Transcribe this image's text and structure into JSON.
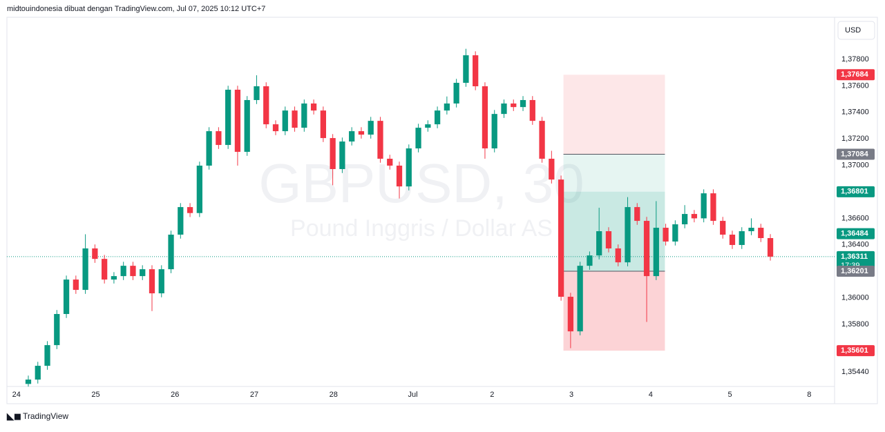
{
  "header": {
    "text": "midtouindonesia dibuat dengan TradingView.com, Jul 07, 2025 10:12 UTC+7"
  },
  "currency_button": "USD",
  "footer": {
    "brand": "TradingView"
  },
  "chart_data": {
    "type": "candlestick",
    "title": "GBPUSD, 30",
    "subtitle": "Pound Inggris / Dollar AS",
    "up_color": "#089981",
    "down_color": "#f23645",
    "x": [
      0.15,
      0.27,
      0.39,
      0.51,
      0.63,
      0.75,
      0.87,
      0.99,
      1.11,
      1.23,
      1.35,
      1.47,
      1.59,
      1.71,
      1.83,
      1.95,
      2.07,
      2.19,
      2.31,
      2.43,
      2.55,
      2.67,
      2.79,
      2.91,
      3.03,
      3.15,
      3.27,
      3.39,
      3.51,
      3.63,
      3.75,
      3.87,
      3.99,
      4.11,
      4.23,
      4.35,
      4.47,
      4.59,
      4.71,
      4.83,
      4.95,
      5.07,
      5.19,
      5.31,
      5.43,
      5.55,
      5.67,
      5.79,
      5.91,
      6.03,
      6.15,
      6.27,
      6.39,
      6.51,
      6.63,
      6.75,
      6.87,
      6.99,
      7.11,
      7.23,
      7.35,
      7.47,
      7.59,
      7.71,
      7.83,
      7.95,
      8.07,
      8.19,
      8.31,
      8.43,
      8.55,
      8.67,
      8.79,
      8.91,
      9.03,
      9.15,
      9.27,
      9.39,
      9.51
    ],
    "open": [
      1.3535,
      1.35383,
      1.35487,
      1.35643,
      1.35878,
      1.36138,
      1.3606,
      1.36373,
      1.36294,
      1.36138,
      1.36164,
      1.36242,
      1.36164,
      1.36216,
      1.36034,
      1.36216,
      1.36477,
      1.36685,
      1.3664,
      1.36998,
      1.37258,
      1.37154,
      1.37571,
      1.37102,
      1.37493,
      1.37597,
      1.3731,
      1.37258,
      1.37414,
      1.37284,
      1.37467,
      1.37414,
      1.37206,
      1.36972,
      1.3718,
      1.37258,
      1.37232,
      1.37336,
      1.3705,
      1.36998,
      1.36841,
      1.37128,
      1.37284,
      1.3731,
      1.37414,
      1.37467,
      1.37623,
      1.37831,
      1.37597,
      1.37128,
      1.37388,
      1.37467,
      1.3744,
      1.37493,
      1.37336,
      1.3705,
      1.36893,
      1.36008,
      1.35747,
      1.36242,
      1.3632,
      1.36503,
      1.36373,
      1.36268,
      1.36685,
      1.36581,
      1.36164,
      1.36529,
      1.36425,
      1.36555,
      1.36633,
      1.366,
      1.36789,
      1.36581,
      1.36477,
      1.36399,
      1.36503,
      1.36529,
      1.36451
    ],
    "high": [
      1.35413,
      1.35517,
      1.35673,
      1.35908,
      1.36168,
      1.36168,
      1.3648,
      1.36403,
      1.36324,
      1.36194,
      1.36272,
      1.36272,
      1.36246,
      1.36246,
      1.36246,
      1.36507,
      1.36715,
      1.36715,
      1.37028,
      1.37288,
      1.37288,
      1.37601,
      1.37601,
      1.37523,
      1.3768,
      1.37627,
      1.3734,
      1.37444,
      1.37444,
      1.37497,
      1.37497,
      1.37444,
      1.37236,
      1.3721,
      1.37288,
      1.37288,
      1.37366,
      1.37366,
      1.3708,
      1.37028,
      1.37158,
      1.37314,
      1.3734,
      1.37444,
      1.3752,
      1.37653,
      1.3788,
      1.37861,
      1.37627,
      1.37418,
      1.37497,
      1.37497,
      1.37523,
      1.37523,
      1.37366,
      1.3711,
      1.36923,
      1.36038,
      1.36272,
      1.3635,
      1.3668,
      1.36533,
      1.36403,
      1.3676,
      1.36715,
      1.36611,
      1.3673,
      1.36559,
      1.36585,
      1.367,
      1.36663,
      1.36819,
      1.36819,
      1.36611,
      1.36507,
      1.36533,
      1.366,
      1.36559,
      1.36481
    ],
    "low": [
      1.3533,
      1.35353,
      1.35457,
      1.35613,
      1.35848,
      1.3603,
      1.3603,
      1.36264,
      1.36108,
      1.36108,
      1.36134,
      1.36134,
      1.36134,
      1.359,
      1.36004,
      1.36186,
      1.36447,
      1.3661,
      1.3661,
      1.36968,
      1.37124,
      1.37124,
      1.36998,
      1.37072,
      1.37463,
      1.3728,
      1.37228,
      1.37228,
      1.37254,
      1.37254,
      1.37384,
      1.37176,
      1.3685,
      1.36942,
      1.3715,
      1.37202,
      1.37202,
      1.3702,
      1.36968,
      1.3675,
      1.36811,
      1.37098,
      1.37254,
      1.3728,
      1.37384,
      1.37437,
      1.37593,
      1.37567,
      1.3705,
      1.37098,
      1.37358,
      1.3741,
      1.3741,
      1.37306,
      1.3702,
      1.36863,
      1.35978,
      1.3562,
      1.35717,
      1.36212,
      1.3629,
      1.36343,
      1.36238,
      1.36238,
      1.36551,
      1.35818,
      1.36134,
      1.36395,
      1.36395,
      1.36525,
      1.3657,
      1.3657,
      1.36551,
      1.36447,
      1.36369,
      1.36369,
      1.36473,
      1.36421,
      1.36281
    ],
    "close": [
      1.35383,
      1.35487,
      1.35643,
      1.35878,
      1.36138,
      1.3606,
      1.36373,
      1.36294,
      1.36138,
      1.36164,
      1.36242,
      1.36164,
      1.36216,
      1.36034,
      1.36216,
      1.36477,
      1.36685,
      1.3664,
      1.36998,
      1.37258,
      1.37154,
      1.37571,
      1.37102,
      1.37493,
      1.37597,
      1.3731,
      1.37258,
      1.37414,
      1.37284,
      1.37467,
      1.37414,
      1.37206,
      1.36972,
      1.3718,
      1.37258,
      1.37232,
      1.37336,
      1.3705,
      1.36998,
      1.36841,
      1.37128,
      1.37284,
      1.3731,
      1.37414,
      1.37467,
      1.37623,
      1.37831,
      1.37597,
      1.37128,
      1.37388,
      1.37467,
      1.3744,
      1.37493,
      1.37336,
      1.3705,
      1.36893,
      1.36008,
      1.35747,
      1.36242,
      1.3632,
      1.36503,
      1.36373,
      1.36268,
      1.36685,
      1.36581,
      1.36164,
      1.36529,
      1.36425,
      1.36555,
      1.36633,
      1.366,
      1.36789,
      1.36581,
      1.36477,
      1.36399,
      1.36503,
      1.36529,
      1.36451,
      1.36311
    ],
    "xlim": [
      -0.12,
      10.32
    ],
    "xticks": [
      {
        "value": 0,
        "label": "24"
      },
      {
        "value": 1,
        "label": "25"
      },
      {
        "value": 2,
        "label": "26"
      },
      {
        "value": 3,
        "label": "27"
      },
      {
        "value": 4,
        "label": "28"
      },
      {
        "value": 5,
        "label": "Jul"
      },
      {
        "value": 6,
        "label": "2"
      },
      {
        "value": 7,
        "label": "3"
      },
      {
        "value": 8,
        "label": "4"
      },
      {
        "value": 9,
        "label": "5"
      },
      {
        "value": 10,
        "label": "8"
      }
    ],
    "ylim": [
      1.35331,
      1.38118
    ],
    "yticks": [
      {
        "value": 1.378,
        "label": "1,37800"
      },
      {
        "value": 1.376,
        "label": "1,37600"
      },
      {
        "value": 1.374,
        "label": "1,37400"
      },
      {
        "value": 1.372,
        "label": "1,37200"
      },
      {
        "value": 1.37,
        "label": "1,37000"
      },
      {
        "value": 1.366,
        "label": "1,36600"
      },
      {
        "value": 1.364,
        "label": "1,36400"
      },
      {
        "value": 1.36,
        "label": "1,36000"
      },
      {
        "value": 1.358,
        "label": "1,35800"
      },
      {
        "value": 1.3544,
        "label": "1,35440"
      }
    ],
    "grid": false,
    "zone_x": [
      6.9,
      8.18
    ],
    "zones": [
      {
        "from": 1.37684,
        "to": 1.37084,
        "color": "rgba(242,54,69,0.12)",
        "edge": false
      },
      {
        "from": 1.37084,
        "to": 1.36801,
        "color": "rgba(8,153,129,0.10)",
        "edge": true
      },
      {
        "from": 1.36801,
        "to": 1.36201,
        "color": "rgba(8,153,129,0.22)",
        "edge": false
      },
      {
        "from": 1.36201,
        "to": 1.35601,
        "color": "rgba(242,54,69,0.22)",
        "edge": true
      }
    ],
    "current_price": 1.36311,
    "price_labels": [
      {
        "value": 1.37684,
        "label": "1,37684",
        "color": "#f23645"
      },
      {
        "value": 1.37084,
        "label": "1,37084",
        "color": "#787b86"
      },
      {
        "value": 1.36801,
        "label": "1,36801",
        "color": "#089981"
      },
      {
        "value": 1.36484,
        "label": "1,36484",
        "color": "#089981"
      },
      {
        "value": 1.36311,
        "label": "1,36311",
        "sublabel": "17:39",
        "color": "#089981"
      },
      {
        "value": 1.36201,
        "label": "1,36201",
        "color": "#787b86"
      },
      {
        "value": 1.35601,
        "label": "1,35601",
        "color": "#f23645"
      }
    ]
  }
}
